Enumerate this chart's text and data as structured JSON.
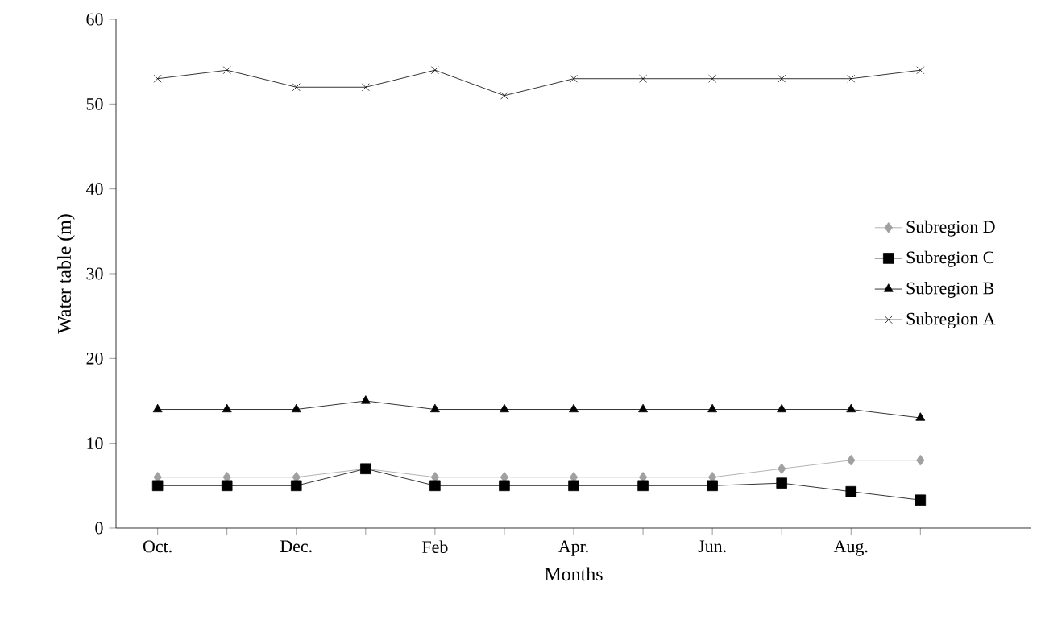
{
  "chart_data": {
    "type": "line",
    "xlabel": "Months",
    "ylabel": "Water table (m)",
    "categories": [
      "Oct.",
      null,
      "Dec.",
      null,
      "Feb",
      null,
      "Apr.",
      null,
      "Jun.",
      null,
      "Aug.",
      null
    ],
    "ylim": [
      0,
      60
    ],
    "yticks": [
      0,
      10,
      20,
      30,
      40,
      50,
      60
    ],
    "legend": "right",
    "line_style": "solid",
    "series": [
      {
        "name": "Subregion D",
        "color": "#a0a0a0",
        "marker": "diamond",
        "values": [
          6,
          6,
          6,
          7,
          6,
          6,
          6,
          6,
          6,
          7,
          8,
          8
        ]
      },
      {
        "name": "Subregion C",
        "color": "#000000",
        "marker": "square",
        "values": [
          5,
          5,
          5,
          7,
          5,
          5,
          5,
          5,
          5,
          5.3,
          4.3,
          3.3
        ]
      },
      {
        "name": "Subregion B",
        "color": "#000000",
        "marker": "triangle",
        "values": [
          14,
          14,
          14,
          15,
          14,
          14,
          14,
          14,
          14,
          14,
          14,
          13
        ]
      },
      {
        "name": "Subregion A",
        "color": "#000000",
        "marker": "cross",
        "values": [
          53,
          54,
          52,
          52,
          54,
          51,
          53,
          53,
          53,
          53,
          53,
          54
        ]
      }
    ]
  }
}
